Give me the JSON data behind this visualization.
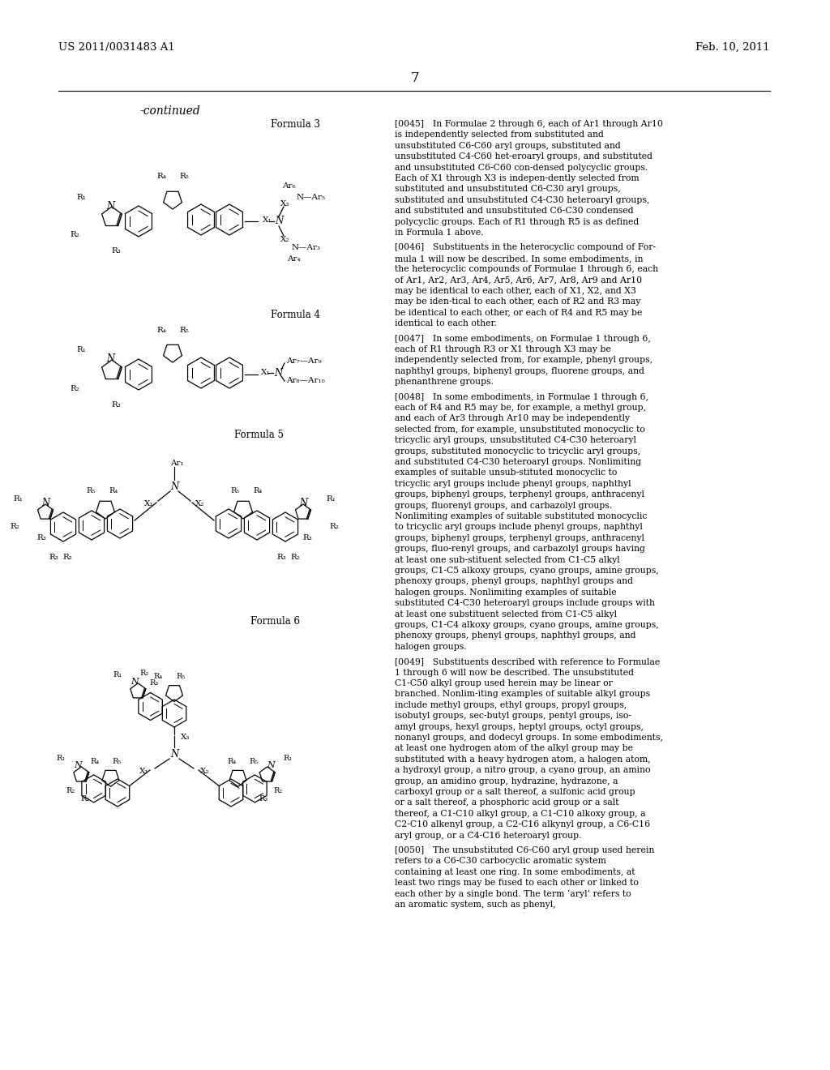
{
  "bg": "#ffffff",
  "tc": "#000000",
  "header_left": "US 2011/0031483 A1",
  "header_right": "Feb. 10, 2011",
  "page_num": "7",
  "continued": "-continued",
  "f3_label": "Formula 3",
  "f4_label": "Formula 4",
  "f5_label": "Formula 5",
  "f6_label": "Formula 6",
  "p0045": "[0045] In Formulae 2 through 6, each of Ar1 through Ar10 is independently selected from substituted and unsubstituted C6-C60 aryl groups, substituted and unsubstituted C4-C60 het-eroaryl groups, and substituted and unsubstituted C6-C60 con-densed polycyclic groups. Each of X1 through X3 is indepen-dently selected from substituted and unsubstituted C6-C30 aryl groups, substituted and unsubstituted C4-C30 heteroaryl groups, and substituted and unsubstituted C6-C30 condensed polycyclic groups. Each of R1 through R5 is as defined in Formula 1 above.",
  "p0046": "[0046] Substituents in the heterocyclic compound of For-mula 1 will now be described. In some embodiments, in the heterocyclic compounds of Formulae 1 through 6, each of Ar1, Ar2, Ar3, Ar4, Ar5, Ar6, Ar7, Ar8, Ar9 and Ar10 may be identical to each other, each of X1, X2, and X3 may be iden-tical to each other, each of R2 and R3 may be identical to each other, or each of R4 and R5 may be identical to each other.",
  "p0047": "[0047] In some embodiments, on Formulae 1 through 6, each of R1 through R3 or X1 through X3 may be independently selected from, for example, phenyl groups, naphthyl groups, biphenyl groups, fluorene groups, and phenanthrene groups.",
  "p0048": "[0048] In some embodiments, in Formulae 1 through 6, each of R4 and R5 may be, for example, a methyl group, and each of Ar3 through Ar10 may be independently selected from, for example, unsubstituted monocyclic to tricyclic aryl groups, unsubstituted C4-C30 heteroaryl groups, substituted monocyclic to tricyclic aryl groups, and substituted C4-C30 heteroaryl groups. Nonlimiting examples of suitable unsub-stituted monocyclic to tricyclic aryl groups include phenyl groups, naphthyl groups, biphenyl groups, terphenyl groups, anthracenyl groups, fluorenyl groups, and carbazolyl groups. Nonlimiting examples of suitable substituted monocyclic to tricyclic aryl groups include phenyl groups, naphthyl groups, biphenyl groups, terphenyl groups, anthracenyl groups, fluo-renyl groups, and carbazolyl groups having at least one sub-stituent selected from C1-C5 alkyl groups, C1-C5 alkoxy groups, cyano groups, amine groups, phenoxy groups, phenyl groups, naphthyl groups and halogen groups. Nonlimiting examples of suitable substituted C4-C30 heteroaryl groups include groups with at least one substituent selected from C1-C5 alkyl groups, C1-C4 alkoxy groups, cyano groups, amine groups, phenoxy groups, phenyl groups, naphthyl groups, and halogen groups.",
  "p0049": "[0049] Substituents described with reference to Formulae 1 through 6 will now be described. The unsubstituted C1-C50 alkyl group used herein may be linear or branched. Nonlim-iting examples of suitable alkyl groups include methyl groups, ethyl groups, propyl groups, isobutyl groups, sec-butyl groups, pentyl groups, iso-amyl groups, hexyl groups, heptyl groups, octyl groups, nonanyl groups, and dodecyl groups. In some embodiments, at least one hydrogen atom of the alkyl group may be substituted with a heavy hydrogen atom, a halogen atom, a hydroxyl group, a nitro group, a cyano group, an amino group, an amidino group, hydrazine, hydrazone, a carboxyl group or a salt thereof, a sulfonic acid group or a salt thereof, a phosphoric acid group or a salt thereof, a C1-C10 alkyl group, a C1-C10 alkoxy group, a C2-C10 alkenyl group, a C2-C16 alkynyl group, a C6-C16 aryl group, or a C4-C16 heteroaryl group.",
  "p0050": "[0050] The unsubstituted C6-C60 aryl group used herein refers to a C6-C30 carbocyclic aromatic system containing at least one ring. In some embodiments, at least two rings may be fused to each other or linked to each other by a single bond. The term ‘aryl’ refers to an aromatic system, such as phenyl,"
}
